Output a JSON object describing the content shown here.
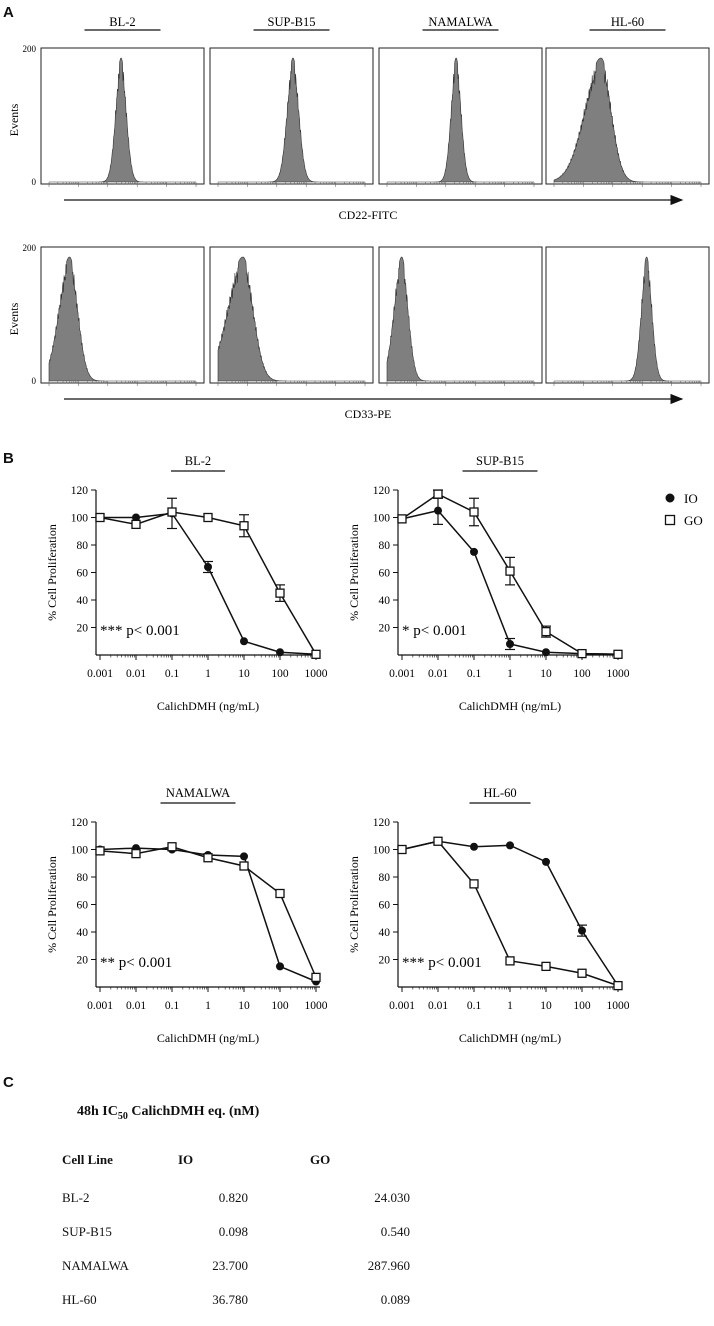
{
  "panel_labels": {
    "a": "A",
    "b": "B",
    "c": "C"
  },
  "chart_data": [
    {
      "type": "histogram",
      "panel": "A",
      "row": "CD22",
      "xlabel": "CD22-FITC",
      "ylabel": "Events",
      "ymin_label": "0",
      "ymax_label": "200",
      "x_scale": "log",
      "xlim_decades": [
        0,
        5
      ],
      "panels": [
        {
          "title": "BL-2",
          "peak_log": 2.45,
          "width_log": 0.18,
          "skew": 0.0
        },
        {
          "title": "SUP-B15",
          "peak_log": 2.55,
          "width_log": 0.2,
          "skew": 0.0
        },
        {
          "title": "NAMALWA",
          "peak_log": 2.35,
          "width_log": 0.17,
          "skew": 0.0
        },
        {
          "title": "HL-60",
          "peak_log": 1.6,
          "width_log": 0.35,
          "skew": 0.6
        }
      ]
    },
    {
      "type": "histogram",
      "panel": "A",
      "row": "CD33",
      "xlabel": "CD33-PE",
      "ylabel": "Events",
      "ymin_label": "0",
      "ymax_label": "200",
      "x_scale": "log",
      "xlim_decades": [
        0,
        5
      ],
      "panels": [
        {
          "title": "BL-2",
          "peak_log": 0.7,
          "width_log": 0.28,
          "skew": 0.3
        },
        {
          "title": "SUP-B15",
          "peak_log": 0.85,
          "width_log": 0.35,
          "skew": 0.5
        },
        {
          "title": "NAMALWA",
          "peak_log": 0.5,
          "width_log": 0.22,
          "skew": 0.2
        },
        {
          "title": "HL-60",
          "peak_log": 3.15,
          "width_log": 0.18,
          "skew": 0.0
        }
      ]
    },
    {
      "type": "line",
      "panel": "B",
      "title": "BL-2",
      "xlabel": "CalichDMH (ng/mL)",
      "ylabel": "% Cell Proliferation",
      "x": [
        0.001,
        0.01,
        0.1,
        1,
        10,
        100,
        1000
      ],
      "x_tick_labels": [
        "0.001",
        "0.01",
        "0.1",
        "1",
        "10",
        "100",
        "1000"
      ],
      "ylim": [
        0,
        120
      ],
      "y_ticks": [
        20,
        40,
        60,
        80,
        100,
        120
      ],
      "annotation": "*** p< 0.001",
      "series": [
        {
          "name": "IO",
          "marker": "filled-circle",
          "values": [
            100,
            100,
            103,
            64,
            10,
            2,
            0.5
          ],
          "errors": [
            0,
            0,
            11,
            4,
            0,
            0,
            0
          ]
        },
        {
          "name": "GO",
          "marker": "open-square",
          "values": [
            100,
            95,
            104,
            100,
            94,
            45,
            0.5
          ],
          "errors": [
            0,
            0,
            0,
            0,
            8,
            6,
            0
          ]
        }
      ]
    },
    {
      "type": "line",
      "panel": "B",
      "title": "SUP-B15",
      "xlabel": "CalichDMH (ng/mL)",
      "ylabel": "% Cell Proliferation",
      "x": [
        0.001,
        0.01,
        0.1,
        1,
        10,
        100,
        1000
      ],
      "x_tick_labels": [
        "0.001",
        "0.01",
        "0.1",
        "1",
        "10",
        "100",
        "1000"
      ],
      "ylim": [
        0,
        120
      ],
      "y_ticks": [
        20,
        40,
        60,
        80,
        100,
        120
      ],
      "annotation": "* p< 0.001",
      "legend": [
        {
          "marker": "filled-circle",
          "label": "IO"
        },
        {
          "marker": "open-square",
          "label": "GO"
        }
      ],
      "series": [
        {
          "name": "IO",
          "marker": "filled-circle",
          "values": [
            99,
            105,
            75,
            8,
            2,
            1,
            0.5
          ],
          "errors": [
            0,
            10,
            0,
            4,
            0,
            0,
            0
          ]
        },
        {
          "name": "GO",
          "marker": "open-square",
          "values": [
            99,
            117,
            104,
            61,
            17,
            1,
            0.5
          ],
          "errors": [
            0,
            3,
            10,
            10,
            4,
            0,
            0
          ]
        }
      ]
    },
    {
      "type": "line",
      "panel": "B",
      "title": "NAMALWA",
      "xlabel": "CalichDMH (ng/mL)",
      "ylabel": "% Cell Proliferation",
      "x": [
        0.001,
        0.01,
        0.1,
        1,
        10,
        100,
        1000
      ],
      "x_tick_labels": [
        "0.001",
        "0.01",
        "0.1",
        "1",
        "10",
        "100",
        "1000"
      ],
      "ylim": [
        0,
        120
      ],
      "y_ticks": [
        20,
        40,
        60,
        80,
        100,
        120
      ],
      "annotation": "** p< 0.001",
      "series": [
        {
          "name": "IO",
          "marker": "filled-circle",
          "values": [
            100,
            101,
            100,
            96,
            95,
            15,
            4
          ],
          "errors": [
            0,
            0,
            0,
            0,
            0,
            0,
            0
          ]
        },
        {
          "name": "GO",
          "marker": "open-square",
          "values": [
            99,
            97,
            102,
            94,
            88,
            68,
            7
          ],
          "errors": [
            0,
            0,
            0,
            0,
            0,
            0,
            0
          ]
        }
      ]
    },
    {
      "type": "line",
      "panel": "B",
      "title": "HL-60",
      "xlabel": "CalichDMH (ng/mL)",
      "ylabel": "% Cell Proliferation",
      "x": [
        0.001,
        0.01,
        0.1,
        1,
        10,
        100,
        1000
      ],
      "x_tick_labels": [
        "0.001",
        "0.01",
        "0.1",
        "1",
        "10",
        "100",
        "1000"
      ],
      "ylim": [
        0,
        120
      ],
      "y_ticks": [
        20,
        40,
        60,
        80,
        100,
        120
      ],
      "annotation": "*** p< 0.001",
      "series": [
        {
          "name": "IO",
          "marker": "filled-circle",
          "values": [
            100,
            106,
            102,
            103,
            91,
            41,
            1
          ],
          "errors": [
            0,
            0,
            0,
            0,
            0,
            4,
            0
          ]
        },
        {
          "name": "GO",
          "marker": "open-square",
          "values": [
            100,
            106,
            75,
            19,
            15,
            10,
            1
          ],
          "errors": [
            0,
            0,
            0,
            0,
            0,
            0,
            0
          ]
        }
      ]
    }
  ],
  "table": {
    "title_prefix": "48h IC",
    "title_sub": "50",
    "title_suffix": " CalichDMH eq. (nM)",
    "headers": [
      "Cell Line",
      "IO",
      "GO"
    ],
    "rows": [
      [
        "BL-2",
        "0.820",
        "24.030"
      ],
      [
        "SUP-B15",
        "0.098",
        "0.540"
      ],
      [
        "NAMALWA",
        "23.700",
        "287.960"
      ],
      [
        "HL-60",
        "36.780",
        "0.089"
      ]
    ]
  },
  "colors": {
    "histogram_fill": "#7f7f7f",
    "line": "#111111"
  }
}
